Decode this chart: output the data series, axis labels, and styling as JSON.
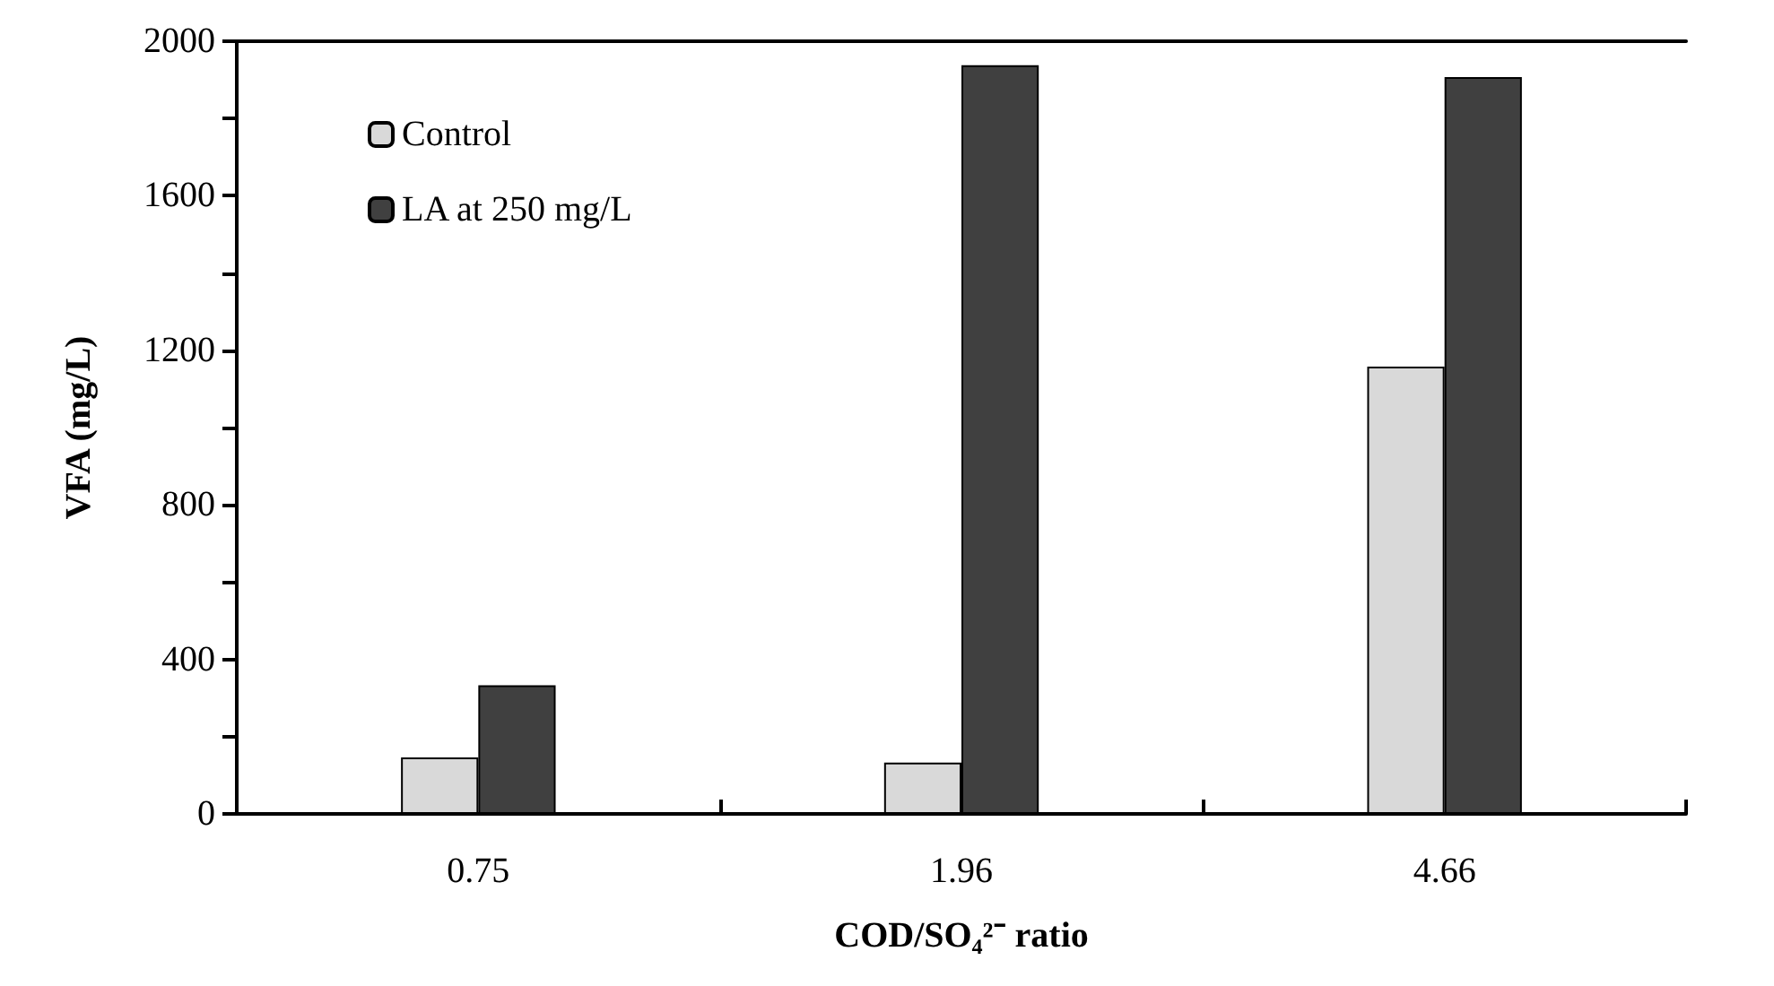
{
  "chart_data": {
    "type": "bar",
    "xlabel": "COD/SO₄²⁻ ratio",
    "ylabel": "VFA (mg/L)",
    "categories": [
      "0.75",
      "1.96",
      "4.66"
    ],
    "series": [
      {
        "name": "Control",
        "color": "#d9d9d9",
        "values": [
          146,
          133,
          1158
        ]
      },
      {
        "name": "LA at 250 mg/L",
        "color": "#404040",
        "values": [
          333,
          1938,
          1907
        ]
      }
    ],
    "ylim": [
      0,
      2000
    ],
    "yticks": [
      0,
      {
        "value": 200,
        "label": null
      },
      400,
      {
        "value": 600,
        "label": null
      },
      800,
      {
        "value": 1000,
        "label": null
      },
      1200,
      {
        "value": 1400,
        "label": null
      },
      1600,
      {
        "value": 1800,
        "label": null
      },
      2000
    ],
    "grid": false,
    "legend": "top left"
  }
}
